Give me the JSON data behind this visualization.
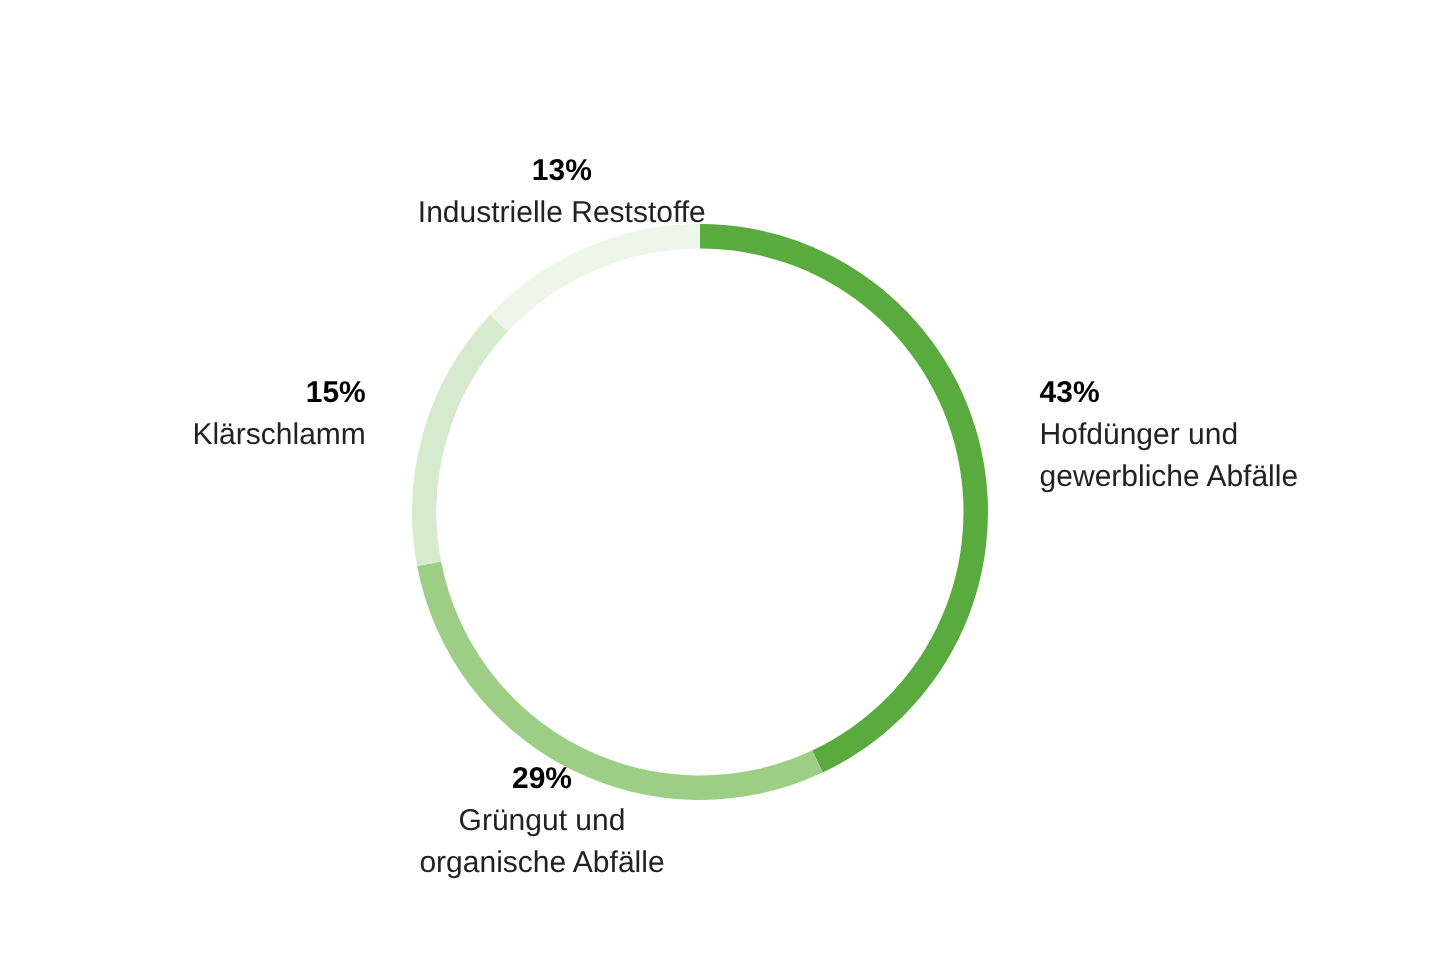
{
  "chart_data": {
    "type": "donut",
    "categories": [
      "Hofdünger und gewerbliche Abfälle",
      "Grüngut und organische Abfälle",
      "Klärschlamm",
      "Industrielle Reststoffe"
    ],
    "values": [
      43,
      29,
      15,
      13
    ],
    "colors": [
      "#5aab3e",
      "#9ccf85",
      "#d6ebcd",
      "#eef6ea"
    ],
    "value_labels": [
      "43%",
      "29%",
      "15%",
      "13%"
    ],
    "legend": false
  }
}
